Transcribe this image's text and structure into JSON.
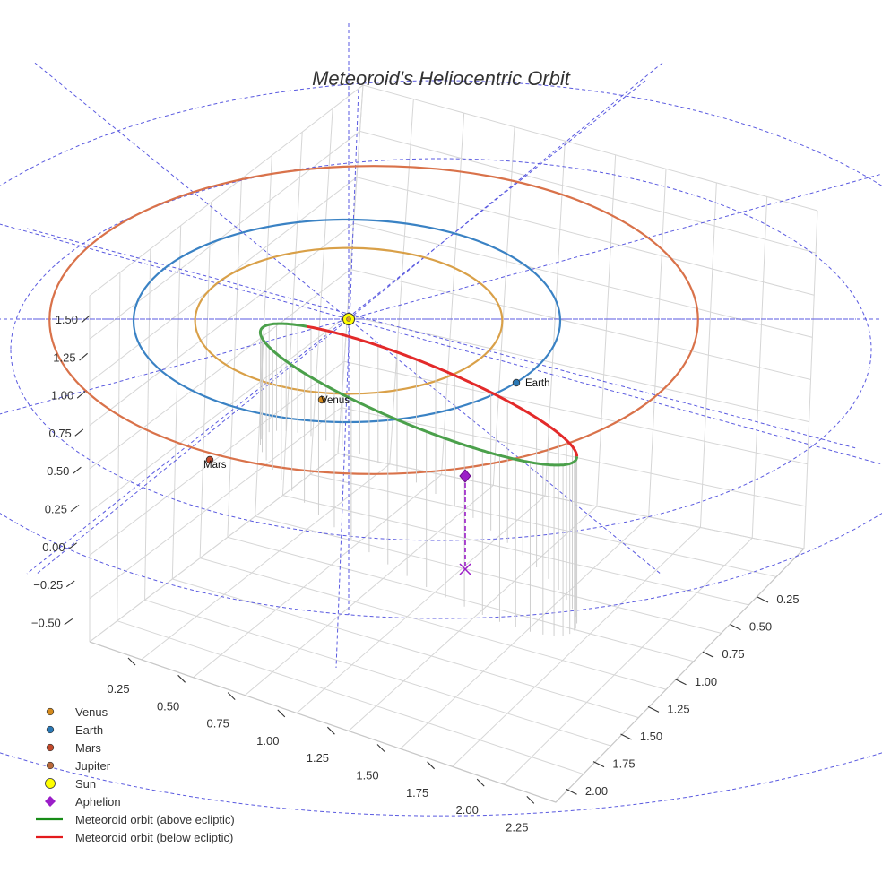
{
  "chart_data": {
    "type": "3d-orbit",
    "title": "Meteoroid's Heliocentric Orbit",
    "x_ticks": [
      "0.25",
      "0.50",
      "0.75",
      "1.00",
      "1.25",
      "1.50",
      "1.75",
      "2.00",
      "2.25"
    ],
    "y_ticks": [
      "0.25",
      "0.50",
      "0.75",
      "1.00",
      "1.25",
      "1.50",
      "1.75",
      "2.00"
    ],
    "z_ticks": [
      "1.50",
      "1.25",
      "1.00",
      "0.75",
      "0.50",
      "0.25",
      "0.00",
      "−0.25",
      "−0.50"
    ],
    "orbits_au": [
      {
        "name": "Venus",
        "a": 0.72,
        "color": "#d9a048"
      },
      {
        "name": "Earth",
        "a": 1.0,
        "color": "#3a82c4"
      },
      {
        "name": "Mars",
        "a": 1.52,
        "color": "#d9724a"
      }
    ],
    "planets": [
      {
        "name": "Venus",
        "label": "Venus",
        "color": "#d58a1c"
      },
      {
        "name": "Earth",
        "label": "Earth",
        "color": "#2a78b5"
      },
      {
        "name": "Mars",
        "label": "Mars",
        "color": "#c2482a"
      }
    ],
    "meteoroid": {
      "perihelion_au": 0.15,
      "aphelion_au": 1.5,
      "above_color": "#4ba04b",
      "below_color": "#e32a2a"
    },
    "legend": [
      {
        "label": "Venus",
        "marker": "circle",
        "color": "#d58a1c"
      },
      {
        "label": "Earth",
        "marker": "circle",
        "color": "#2a78b5"
      },
      {
        "label": "Mars",
        "marker": "circle",
        "color": "#c2482a"
      },
      {
        "label": "Jupiter",
        "marker": "circle",
        "color": "#b9693a"
      },
      {
        "label": "Sun",
        "marker": "circle-large",
        "color": "#ffff00"
      },
      {
        "label": "Aphelion",
        "marker": "diamond",
        "color": "#9b1ec8"
      },
      {
        "label": "Meteoroid orbit (above ecliptic)",
        "marker": "line",
        "color": "#178c17"
      },
      {
        "label": "Meteoroid orbit (below ecliptic)",
        "marker": "line",
        "color": "#e31a1c"
      }
    ]
  }
}
